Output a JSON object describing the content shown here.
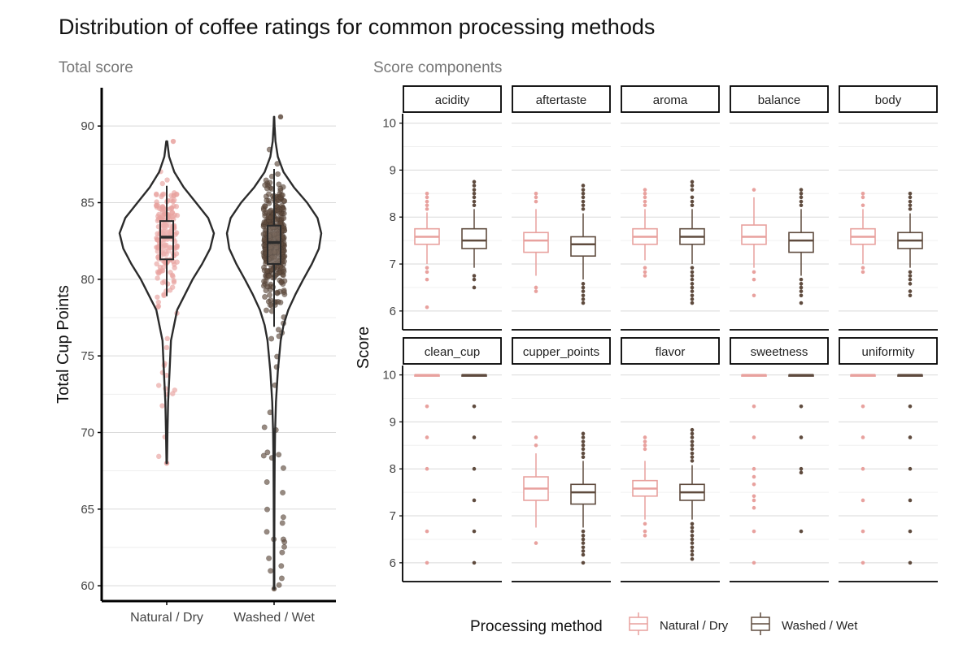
{
  "title": "Distribution of coffee ratings for common processing methods",
  "colors": {
    "natural": "#E8A19E",
    "washed": "#5F4B3E",
    "grid": "#D9D9D9",
    "ink": "#222222",
    "subtitle": "#777777"
  },
  "legend": {
    "title": "Processing method",
    "items": [
      {
        "label": "Natural / Dry",
        "color": "#E8A19E"
      },
      {
        "label": "Washed / Wet",
        "color": "#5F4B3E"
      }
    ]
  },
  "chart_data": [
    {
      "type": "violin",
      "panel_title": "Total score",
      "ylabel": "Total Cup Points",
      "ylim": [
        59,
        92.5
      ],
      "yticks": [
        60,
        65,
        70,
        75,
        80,
        85,
        90
      ],
      "categories": [
        "Natural / Dry",
        "Washed / Wet"
      ],
      "series": [
        {
          "name": "Natural / Dry",
          "box": {
            "min": 78.9,
            "q1": 81.3,
            "median": 82.75,
            "q3": 83.8,
            "max": 86.1
          },
          "range": [
            68.0,
            89.0
          ],
          "density_half_width": [
            [
              68.0,
              0.005
            ],
            [
              70,
              0.015
            ],
            [
              72,
              0.03
            ],
            [
              74,
              0.06
            ],
            [
              76,
              0.09
            ],
            [
              78,
              0.22
            ],
            [
              80,
              0.55
            ],
            [
              81,
              0.75
            ],
            [
              82,
              0.92
            ],
            [
              83,
              1.0
            ],
            [
              84,
              0.88
            ],
            [
              85,
              0.62
            ],
            [
              86,
              0.36
            ],
            [
              87,
              0.16
            ],
            [
              88,
              0.05
            ],
            [
              89,
              0.01
            ]
          ]
        },
        {
          "name": "Washed / Wet",
          "box": {
            "min": 76.9,
            "q1": 81.0,
            "median": 82.4,
            "q3": 83.5,
            "max": 87.2
          },
          "range": [
            59.8,
            90.6
          ],
          "density_half_width": [
            [
              59.8,
              0.005
            ],
            [
              63,
              0.005
            ],
            [
              66,
              0.008
            ],
            [
              68,
              0.012
            ],
            [
              70,
              0.02
            ],
            [
              72,
              0.04
            ],
            [
              74,
              0.08
            ],
            [
              76,
              0.14
            ],
            [
              77,
              0.2
            ],
            [
              78,
              0.3
            ],
            [
              79,
              0.45
            ],
            [
              80,
              0.62
            ],
            [
              81,
              0.8
            ],
            [
              82,
              0.95
            ],
            [
              83,
              1.0
            ],
            [
              84,
              0.92
            ],
            [
              85,
              0.7
            ],
            [
              86,
              0.42
            ],
            [
              87,
              0.2
            ],
            [
              88,
              0.08
            ],
            [
              89,
              0.03
            ],
            [
              90,
              0.01
            ],
            [
              90.6,
              0.003
            ]
          ]
        }
      ]
    },
    {
      "type": "box",
      "panel_title": "Score components",
      "ylabel": "Score",
      "ylim": [
        5.6,
        10.2
      ],
      "yticks": [
        6,
        7,
        8,
        9,
        10
      ],
      "categories": [
        "Natural / Dry",
        "Washed / Wet"
      ],
      "facets": [
        {
          "label": "acidity",
          "boxes": [
            {
              "q1": 7.42,
              "median": 7.58,
              "q3": 7.75,
              "lo": 7.0,
              "hi": 8.1,
              "outliers": [
                8.17,
                8.25,
                8.33,
                8.42,
                8.5,
                6.92,
                6.83,
                6.67,
                6.08
              ]
            },
            {
              "q1": 7.33,
              "median": 7.5,
              "q3": 7.75,
              "lo": 6.92,
              "hi": 8.17,
              "outliers": [
                8.25,
                8.33,
                8.42,
                8.5,
                8.58,
                8.67,
                8.75,
                6.75,
                6.67,
                6.5
              ]
            }
          ]
        },
        {
          "label": "aftertaste",
          "boxes": [
            {
              "q1": 7.25,
              "median": 7.5,
              "q3": 7.67,
              "lo": 6.75,
              "hi": 8.17,
              "outliers": [
                8.33,
                8.42,
                8.5,
                6.5,
                6.42
              ]
            },
            {
              "q1": 7.17,
              "median": 7.42,
              "q3": 7.58,
              "lo": 6.67,
              "hi": 8.08,
              "outliers": [
                8.17,
                8.25,
                8.33,
                8.42,
                8.5,
                8.58,
                8.67,
                6.58,
                6.5,
                6.42,
                6.33,
                6.25,
                6.17
              ]
            }
          ]
        },
        {
          "label": "aroma",
          "boxes": [
            {
              "q1": 7.42,
              "median": 7.58,
              "q3": 7.75,
              "lo": 7.08,
              "hi": 8.17,
              "outliers": [
                8.25,
                8.33,
                8.42,
                8.5,
                8.58,
                6.92,
                6.83,
                6.75
              ]
            },
            {
              "q1": 7.42,
              "median": 7.58,
              "q3": 7.75,
              "lo": 7.0,
              "hi": 8.17,
              "outliers": [
                8.25,
                8.33,
                8.42,
                8.58,
                8.67,
                8.75,
                6.92,
                6.83,
                6.75,
                6.67,
                6.58,
                6.5,
                6.42,
                6.33,
                6.25,
                6.17
              ]
            }
          ]
        },
        {
          "label": "balance",
          "boxes": [
            {
              "q1": 7.42,
              "median": 7.58,
              "q3": 7.83,
              "lo": 6.92,
              "hi": 8.42,
              "outliers": [
                8.58,
                6.83,
                6.67,
                6.33
              ]
            },
            {
              "q1": 7.25,
              "median": 7.5,
              "q3": 7.67,
              "lo": 6.75,
              "hi": 8.17,
              "outliers": [
                8.25,
                8.33,
                8.42,
                8.5,
                8.58,
                6.67,
                6.58,
                6.5,
                6.42,
                6.33,
                6.17
              ]
            }
          ]
        },
        {
          "label": "body",
          "boxes": [
            {
              "q1": 7.42,
              "median": 7.58,
              "q3": 7.75,
              "lo": 7.0,
              "hi": 8.17,
              "outliers": [
                8.25,
                8.42,
                8.5,
                6.92,
                6.83
              ]
            },
            {
              "q1": 7.33,
              "median": 7.5,
              "q3": 7.67,
              "lo": 6.92,
              "hi": 8.08,
              "outliers": [
                8.17,
                8.25,
                8.33,
                8.42,
                8.5,
                6.83,
                6.75,
                6.67,
                6.58,
                6.42,
                6.33
              ]
            }
          ]
        },
        {
          "label": "clean_cup",
          "boxes": [
            {
              "q1": 10,
              "median": 10,
              "q3": 10,
              "lo": 9.98,
              "hi": 10,
              "outliers": [
                9.33,
                8.67,
                8.0,
                6.67,
                6.0
              ]
            },
            {
              "q1": 10,
              "median": 10,
              "q3": 10,
              "lo": 9.98,
              "hi": 10,
              "outliers": [
                9.33,
                8.67,
                8.0,
                7.33,
                6.67,
                6.0
              ]
            }
          ]
        },
        {
          "label": "cupper_points",
          "boxes": [
            {
              "q1": 7.33,
              "median": 7.58,
              "q3": 7.83,
              "lo": 6.75,
              "hi": 8.33,
              "outliers": [
                8.5,
                8.67,
                6.42
              ]
            },
            {
              "q1": 7.25,
              "median": 7.5,
              "q3": 7.67,
              "lo": 6.75,
              "hi": 8.17,
              "outliers": [
                8.25,
                8.33,
                8.42,
                8.5,
                8.58,
                8.67,
                8.75,
                6.67,
                6.58,
                6.5,
                6.42,
                6.33,
                6.25,
                6.17,
                6.0
              ]
            }
          ]
        },
        {
          "label": "flavor",
          "boxes": [
            {
              "q1": 7.42,
              "median": 7.58,
              "q3": 7.75,
              "lo": 6.92,
              "hi": 8.17,
              "outliers": [
                8.42,
                8.5,
                8.58,
                8.67,
                6.83,
                6.67,
                6.58
              ]
            },
            {
              "q1": 7.33,
              "median": 7.5,
              "q3": 7.67,
              "lo": 6.92,
              "hi": 8.08,
              "outliers": [
                8.17,
                8.25,
                8.33,
                8.42,
                8.5,
                8.58,
                8.67,
                8.75,
                8.83,
                6.83,
                6.75,
                6.67,
                6.58,
                6.5,
                6.42,
                6.33,
                6.25,
                6.17,
                6.08
              ]
            }
          ]
        },
        {
          "label": "sweetness",
          "boxes": [
            {
              "q1": 10,
              "median": 10,
              "q3": 10,
              "lo": 9.98,
              "hi": 10,
              "outliers": [
                9.33,
                8.67,
                8.0,
                7.83,
                7.67,
                7.42,
                7.33,
                7.17,
                6.67,
                6.0
              ]
            },
            {
              "q1": 10,
              "median": 10,
              "q3": 10,
              "lo": 9.98,
              "hi": 10,
              "outliers": [
                9.33,
                8.67,
                8.0,
                7.92,
                6.67
              ]
            }
          ]
        },
        {
          "label": "uniformity",
          "boxes": [
            {
              "q1": 10,
              "median": 10,
              "q3": 10,
              "lo": 9.98,
              "hi": 10,
              "outliers": [
                9.33,
                8.67,
                8.0,
                7.33,
                6.67,
                6.0
              ]
            },
            {
              "q1": 10,
              "median": 10,
              "q3": 10,
              "lo": 9.98,
              "hi": 10,
              "outliers": [
                9.33,
                8.67,
                8.0,
                7.33,
                6.67,
                6.0
              ]
            }
          ]
        }
      ]
    }
  ]
}
